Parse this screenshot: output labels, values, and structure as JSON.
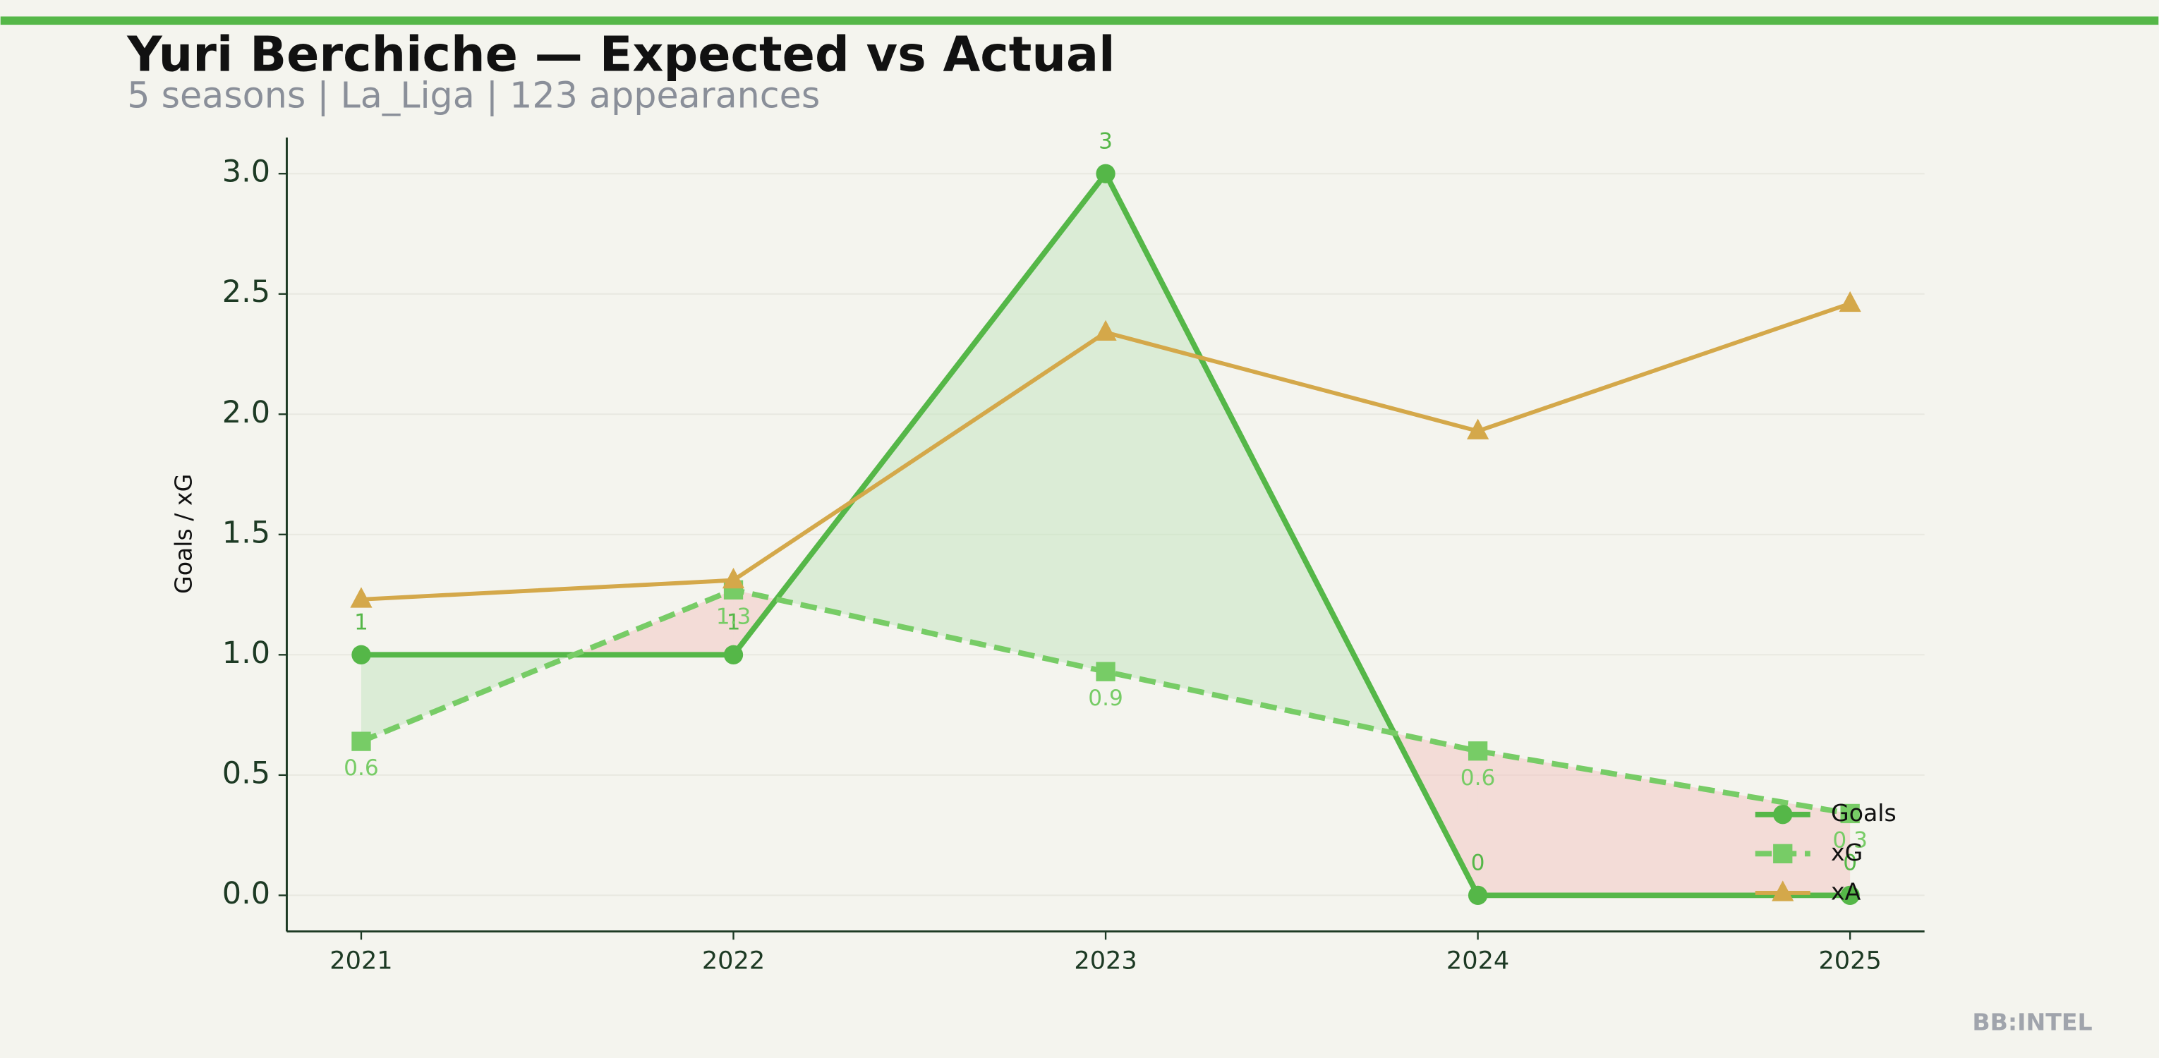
{
  "chart_data": {
    "type": "line",
    "title": "Yuri Berchiche — Expected vs Actual",
    "subtitle": "5 seasons | La_Liga | 123 appearances",
    "y_label": "Goals / xG",
    "watermark": "BB:INTEL",
    "x": [
      2021,
      2022,
      2023,
      2024,
      2025
    ],
    "xlim": [
      2020.8,
      2025.2
    ],
    "xticks": [
      2021,
      2022,
      2023,
      2024,
      2025
    ],
    "ylim": [
      -0.15,
      3.15
    ],
    "yticks": [
      {
        "value": 0,
        "label": "0.0"
      },
      0.5,
      {
        "value": 1,
        "label": "1.0"
      },
      1.5,
      {
        "value": 2,
        "label": "2.0"
      },
      2.5,
      {
        "value": 3,
        "label": "3.0"
      }
    ],
    "grid": true,
    "legend": "lower right",
    "series": [
      {
        "name": "Goals",
        "color": "#55b748",
        "values": [
          1,
          1,
          3,
          0,
          0
        ]
      },
      {
        "name": "xG",
        "color": "#77cc66",
        "values": [
          0.64,
          1.27,
          0.93,
          0.6,
          0.34
        ],
        "value_labels": [
          "0.6",
          "1.3",
          "0.9",
          "0.6",
          "0.3"
        ]
      },
      {
        "name": "xA",
        "color": "#d4a84a",
        "values": [
          1.23,
          1.31,
          2.34,
          1.93,
          2.46
        ]
      }
    ]
  }
}
